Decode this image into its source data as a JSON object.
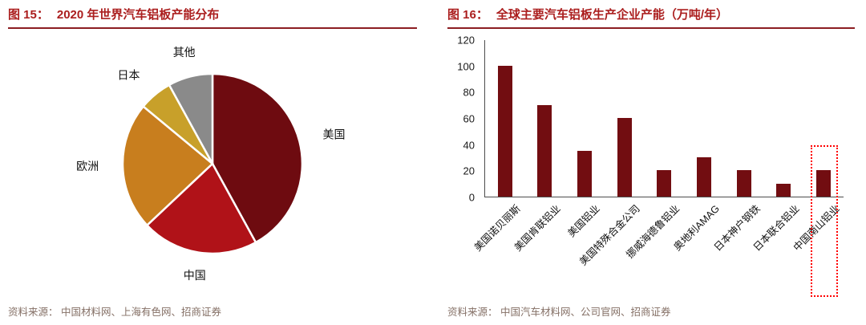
{
  "colors": {
    "title_red": "#ab1e1e",
    "rule_maroon": "#8c1d22",
    "source_text": "#857066",
    "axis_gray": "#4d4d4d",
    "highlight_red": "#ff0000"
  },
  "figures": [
    {
      "prefix": "图 15：",
      "title": "2020 年世界汽车铝板产能分布",
      "source": "资料来源： 中国材料网、上海有色网、招商证券"
    },
    {
      "prefix": "图 16：",
      "title": "全球主要汽车铝板生产企业产能（万吨/年）",
      "source": "资料来源： 中国汽车材料网、公司官网、招商证券"
    }
  ],
  "chart_data": [
    {
      "type": "pie",
      "title": "2020 年世界汽车铝板产能分布",
      "labels": [
        "美国",
        "中国",
        "欧洲",
        "日本",
        "其他"
      ],
      "values": [
        42,
        21,
        23,
        6,
        8
      ],
      "unit": "percent (estimated from slice angles)",
      "colors": [
        "#6e0b10",
        "#b01218",
        "#c87e1e",
        "#c8a02a",
        "#8a8a8a"
      ],
      "legend_position": "none",
      "label_position": "outside"
    },
    {
      "type": "bar",
      "title": "全球主要汽车铝板生产企业产能（万吨/年）",
      "categories": [
        "美国诺贝丽斯",
        "美国肯联铝业",
        "美国铝业",
        "美国特殊合金公司",
        "挪威海德鲁铝业",
        "奥地利AMAG",
        "日本神户钢铁",
        "日本联合铝业",
        "中国南山铝业"
      ],
      "values": [
        100,
        70,
        35,
        60,
        20,
        30,
        20,
        10,
        20
      ],
      "xlabel": "",
      "ylabel": "",
      "ylim": [
        0,
        120
      ],
      "yticks": [
        0,
        20,
        40,
        60,
        80,
        100,
        120
      ],
      "grid": false,
      "bar_color": "#720d11",
      "highlight": {
        "category": "中国南山铝业",
        "index": 8,
        "style": "red-dotted-box",
        "box_top_value": 40
      }
    }
  ]
}
